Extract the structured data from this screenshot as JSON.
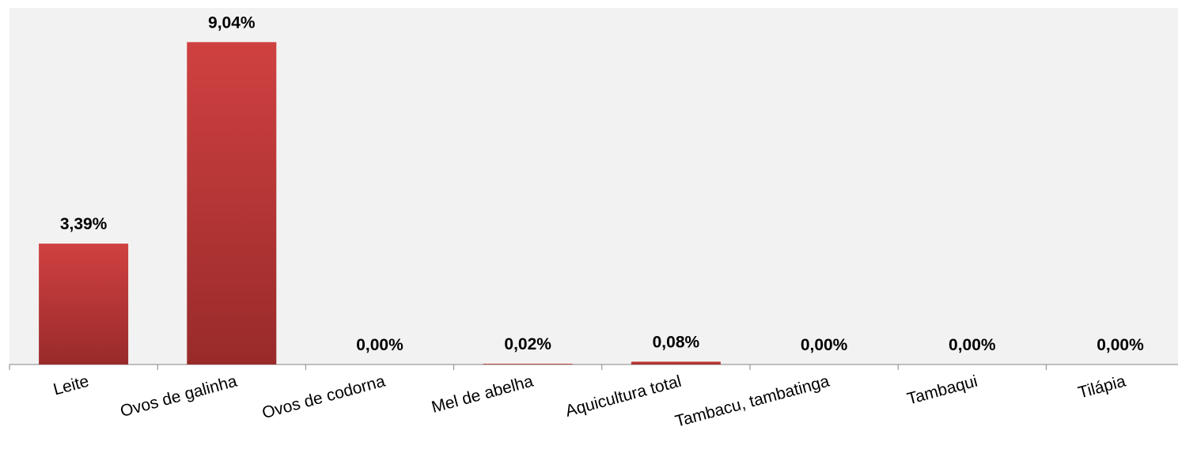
{
  "chart_data": {
    "type": "bar",
    "categories": [
      "Leite",
      "Ovos de galinha",
      "Ovos de codorna",
      "Mel de abelha",
      "Aquicultura total",
      "Tambacu, tambatinga",
      "Tambaqui",
      "Tilápia"
    ],
    "values": [
      3.39,
      9.04,
      0,
      0.02,
      0.08,
      0,
      0,
      0
    ],
    "value_labels": [
      "3,39%",
      "9,04%",
      "0,00%",
      "0,02%",
      "0,08%",
      "0,00%",
      "0,00%",
      "0,00%"
    ],
    "color": "#d04141",
    "ylim": [
      0,
      10
    ]
  }
}
